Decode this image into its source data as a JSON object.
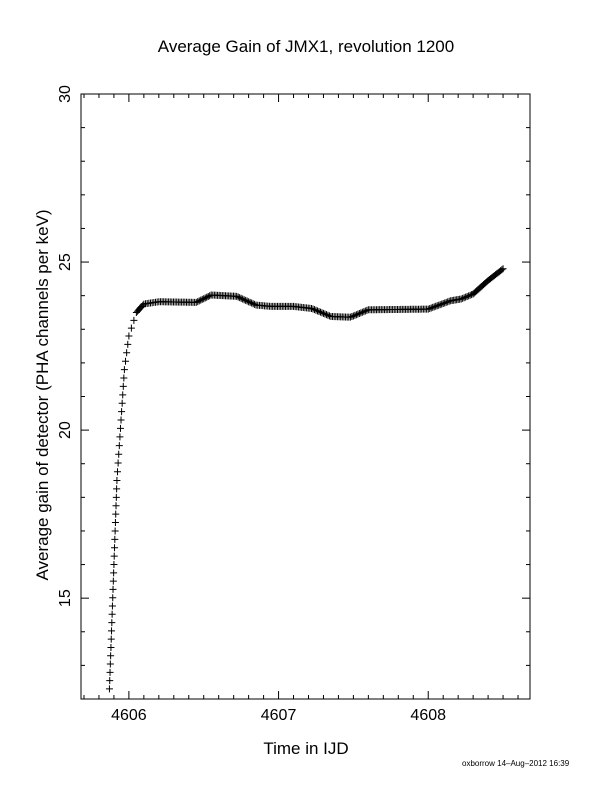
{
  "chart_data": {
    "type": "scatter",
    "marker": "+",
    "title": "Average Gain of JMX1, revolution 1200",
    "xlabel": "Time in IJD",
    "ylabel": "Average gain of detector (PHA channels per keV)",
    "xlim": [
      4605.68,
      4608.68
    ],
    "ylim": [
      12.0,
      30.0
    ],
    "xticks": [
      4606,
      4607,
      4608
    ],
    "yticks": [
      15,
      20,
      25,
      30
    ],
    "xtick_labels": [
      "4606",
      "4607",
      "4608"
    ],
    "ytick_labels": [
      "15",
      "20",
      "25",
      "30"
    ],
    "grid": false,
    "color": "#000000",
    "key_points": [
      {
        "x": 4605.87,
        "y": 12.3
      },
      {
        "x": 4605.9,
        "y": 16.0
      },
      {
        "x": 4605.92,
        "y": 18.5
      },
      {
        "x": 4605.94,
        "y": 19.8
      },
      {
        "x": 4605.97,
        "y": 21.8
      },
      {
        "x": 4606.0,
        "y": 22.8
      },
      {
        "x": 4606.05,
        "y": 23.5
      },
      {
        "x": 4606.1,
        "y": 23.75
      },
      {
        "x": 4606.2,
        "y": 23.82
      },
      {
        "x": 4606.45,
        "y": 23.8
      },
      {
        "x": 4606.55,
        "y": 24.02
      },
      {
        "x": 4606.72,
        "y": 23.98
      },
      {
        "x": 4606.85,
        "y": 23.72
      },
      {
        "x": 4606.95,
        "y": 23.68
      },
      {
        "x": 4607.1,
        "y": 23.68
      },
      {
        "x": 4607.22,
        "y": 23.62
      },
      {
        "x": 4607.35,
        "y": 23.38
      },
      {
        "x": 4607.48,
        "y": 23.36
      },
      {
        "x": 4607.6,
        "y": 23.58
      },
      {
        "x": 4608.0,
        "y": 23.6
      },
      {
        "x": 4608.15,
        "y": 23.85
      },
      {
        "x": 4608.22,
        "y": 23.9
      },
      {
        "x": 4608.3,
        "y": 24.05
      },
      {
        "x": 4608.4,
        "y": 24.45
      },
      {
        "x": 4608.5,
        "y": 24.8
      }
    ]
  },
  "footer": "oxborrow 14–Aug–2012 16:39"
}
